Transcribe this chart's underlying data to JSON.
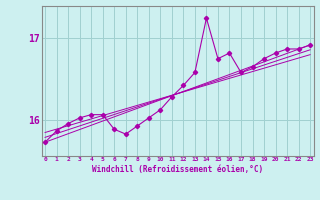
{
  "xlabel": "Windchill (Refroidissement éolien,°C)",
  "bg_color": "#cdf0f0",
  "grid_color": "#a0d0d0",
  "line_color": "#aa00aa",
  "spine_color": "#888888",
  "x_hours": [
    0,
    1,
    2,
    3,
    4,
    5,
    6,
    7,
    8,
    9,
    10,
    11,
    12,
    13,
    14,
    15,
    16,
    17,
    18,
    19,
    20,
    21,
    22,
    23
  ],
  "y_values": [
    15.72,
    15.86,
    15.95,
    16.02,
    16.06,
    16.06,
    15.88,
    15.82,
    15.92,
    16.02,
    16.12,
    16.28,
    16.42,
    16.58,
    17.25,
    16.75,
    16.82,
    16.58,
    16.65,
    16.75,
    16.82,
    16.87,
    16.87,
    16.92
  ],
  "trend_lines": [
    [
      15.72,
      16.92
    ],
    [
      15.78,
      16.86
    ],
    [
      15.84,
      16.8
    ]
  ],
  "ylim": [
    15.55,
    17.4
  ],
  "yticks": [
    16,
    17
  ],
  "xlim": [
    -0.3,
    23.3
  ]
}
